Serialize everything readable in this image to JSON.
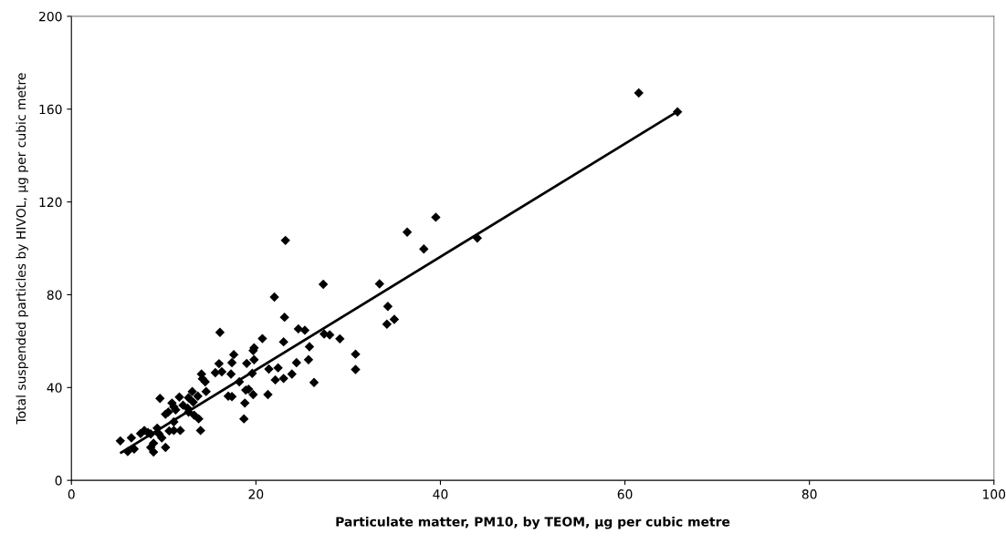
{
  "chart_data": {
    "type": "scatter",
    "xlabel": "Particulate matter, PM10, by TEOM, µg per cubic metre",
    "ylabel": "Total suspended particles by HIVOL, µg per cubic metre",
    "xlim": [
      0,
      100
    ],
    "xticks": [
      0,
      20,
      40,
      60,
      80,
      100
    ],
    "ylim": [
      0,
      200
    ],
    "yticks": [
      0,
      40,
      80,
      120,
      160,
      200
    ],
    "grid": false,
    "legend": false,
    "marker": "diamond",
    "series": [
      {
        "color": "#000000",
        "x": [
          5.3,
          6.1,
          6.5,
          6.8,
          7.5,
          7.9,
          8.3,
          8.6,
          8.9,
          8.6,
          8.9,
          9.3,
          9.5,
          9.8,
          10.2,
          9.6,
          10.2,
          10.5,
          10.9,
          11.1,
          11.3,
          10.6,
          11.1,
          11.8,
          11.1,
          11.7,
          12.1,
          12.7,
          13.3,
          13.8,
          12.6,
          13.2,
          12.7,
          13.7,
          13.1,
          14.6,
          14.0,
          14.1,
          14.2,
          14.5,
          15.6,
          16.0,
          16.1,
          16.3,
          17.0,
          17.4,
          17.3,
          17.4,
          17.6,
          18.2,
          18.7,
          18.8,
          18.9,
          19.0,
          19.2,
          19.6,
          19.7,
          19.7,
          19.8,
          19.8,
          20.7,
          21.3,
          21.4,
          22.0,
          22.1,
          22.4,
          23.0,
          23.0,
          23.1,
          23.2,
          23.9,
          24.4,
          24.6,
          25.3,
          25.7,
          25.8,
          26.3,
          27.3,
          27.4,
          28.0,
          29.1,
          30.8,
          30.8,
          33.4,
          34.2,
          34.3,
          35.0,
          36.4,
          38.2,
          39.5,
          44.0,
          61.5,
          65.7
        ],
        "values": [
          17,
          12.4,
          18.3,
          13.5,
          20.2,
          21.5,
          20.6,
          20,
          16,
          14.2,
          12.2,
          22.5,
          20,
          18.3,
          14.2,
          35.3,
          28.5,
          29.4,
          33.3,
          31.7,
          30.4,
          21.3,
          21.5,
          21.5,
          25.2,
          35.9,
          32.4,
          29.4,
          28.1,
          26.5,
          31.1,
          33.7,
          35.6,
          36.3,
          38.3,
          38.3,
          21.5,
          45.8,
          43.8,
          42.5,
          46.4,
          50.3,
          63.8,
          46.8,
          36.3,
          36.1,
          45.8,
          50.7,
          54.2,
          42.5,
          26.5,
          33.3,
          38.9,
          50.4,
          39.3,
          46.1,
          37,
          55.9,
          57.1,
          52,
          61.1,
          37,
          48,
          79,
          43.3,
          48.5,
          43.9,
          59.7,
          70.3,
          103.4,
          45.8,
          50.7,
          65.3,
          64.7,
          52,
          57.6,
          42.2,
          84.5,
          63.1,
          62.7,
          61,
          54.4,
          47.8,
          84.7,
          67.3,
          75,
          69.4,
          107,
          99.7,
          113.4,
          104.4,
          167,
          158.8
        ]
      },
      {
        "type": "line",
        "color": "#000000",
        "marker": "none",
        "x": [
          5.4,
          65.7
        ],
        "values": [
          12,
          159
        ]
      }
    ]
  }
}
